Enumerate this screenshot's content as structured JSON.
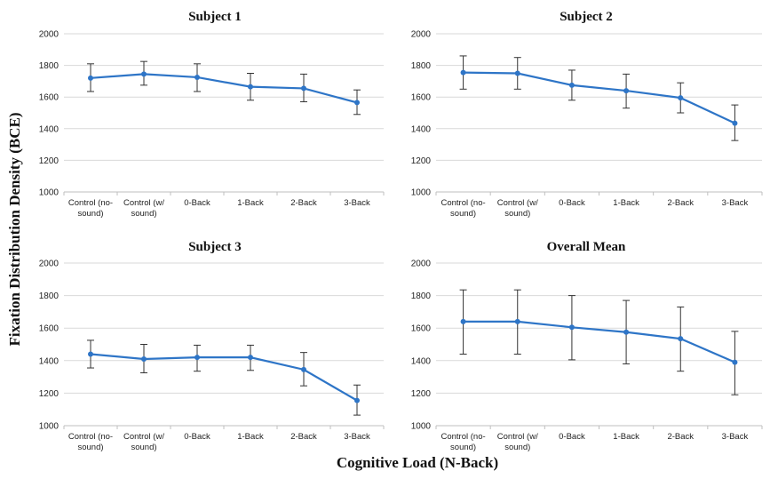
{
  "figure": {
    "ylabel": "Fixation Distribution Density (BCE)",
    "xlabel": "Cognitive Load (N-Back)"
  },
  "chart_data": [
    {
      "type": "line",
      "title": "Subject 1",
      "categories": [
        [
          "Control (no-",
          "sound)"
        ],
        [
          "Control (w/",
          "sound)"
        ],
        [
          "0-Back"
        ],
        [
          "1-Back"
        ],
        [
          "2-Back"
        ],
        [
          "3-Back"
        ]
      ],
      "values": [
        1720,
        1745,
        1725,
        1665,
        1655,
        1565
      ],
      "err_low": [
        1635,
        1675,
        1635,
        1580,
        1570,
        1490
      ],
      "err_high": [
        1810,
        1825,
        1810,
        1750,
        1745,
        1645
      ],
      "yticks": [
        "2000",
        "1800",
        "1600",
        "1400",
        "1200",
        "1000"
      ],
      "ylim": [
        1000,
        2000
      ],
      "color": "#2e75c7",
      "grid": true
    },
    {
      "type": "line",
      "title": "Subject 2",
      "categories": [
        [
          "Control (no-",
          "sound)"
        ],
        [
          "Control (w/",
          "sound)"
        ],
        [
          "0-Back"
        ],
        [
          "1-Back"
        ],
        [
          "2-Back"
        ],
        [
          "3-Back"
        ]
      ],
      "values": [
        1755,
        1750,
        1675,
        1640,
        1595,
        1435
      ],
      "err_low": [
        1650,
        1650,
        1580,
        1530,
        1500,
        1325
      ],
      "err_high": [
        1860,
        1850,
        1770,
        1745,
        1690,
        1550
      ],
      "yticks": [
        "2000",
        "1800",
        "1600",
        "1400",
        "1200",
        "1000"
      ],
      "ylim": [
        1000,
        2000
      ],
      "color": "#2e75c7",
      "grid": true
    },
    {
      "type": "line",
      "title": "Subject 3",
      "categories": [
        [
          "Control (no-",
          "sound)"
        ],
        [
          "Control (w/",
          "sound)"
        ],
        [
          "0-Back"
        ],
        [
          "1-Back"
        ],
        [
          "2-Back"
        ],
        [
          "3-Back"
        ]
      ],
      "values": [
        1440,
        1410,
        1420,
        1420,
        1345,
        1155
      ],
      "err_low": [
        1355,
        1325,
        1335,
        1340,
        1245,
        1065
      ],
      "err_high": [
        1525,
        1500,
        1495,
        1495,
        1450,
        1250
      ],
      "yticks": [
        "2000",
        "1800",
        "1600",
        "1400",
        "1200",
        "1000"
      ],
      "ylim": [
        1000,
        2000
      ],
      "color": "#2e75c7",
      "grid": true
    },
    {
      "type": "line",
      "title": "Overall Mean",
      "categories": [
        [
          "Control (no-",
          "sound)"
        ],
        [
          "Control (w/",
          "sound)"
        ],
        [
          "0-Back"
        ],
        [
          "1-Back"
        ],
        [
          "2-Back"
        ],
        [
          "3-Back"
        ]
      ],
      "values": [
        1640,
        1640,
        1605,
        1575,
        1535,
        1390
      ],
      "err_low": [
        1440,
        1440,
        1405,
        1380,
        1335,
        1190
      ],
      "err_high": [
        1835,
        1835,
        1800,
        1770,
        1730,
        1580
      ],
      "yticks": [
        "2000",
        "1800",
        "1600",
        "1400",
        "1200",
        "1000"
      ],
      "ylim": [
        1000,
        2000
      ],
      "color": "#2e75c7",
      "grid": true
    }
  ]
}
